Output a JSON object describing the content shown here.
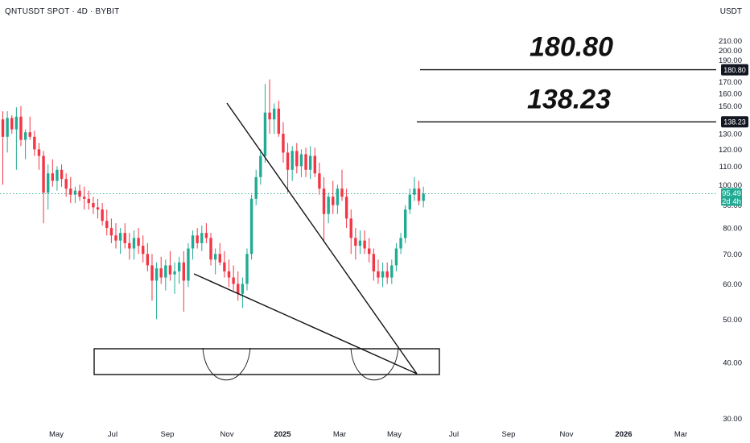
{
  "header": {
    "symbol": "QNTUSDT SPOT · 4D · BYBIT",
    "currency": "USDT"
  },
  "chart_data": {
    "type": "candlestick",
    "price_axis": {
      "ticks": [
        210,
        200,
        190,
        170,
        160,
        150,
        130,
        120,
        110,
        100,
        90,
        80,
        70,
        60,
        50,
        40,
        30
      ],
      "tick_labels": [
        "210.00",
        "200.00",
        "190.00",
        "170.00",
        "160.00",
        "150.00",
        "130.00",
        "120.00",
        "110.00",
        "100.00",
        "90.00",
        "80.00",
        "70.00",
        "60.00",
        "50.00",
        "40.00",
        "30.00"
      ],
      "ylim": [
        26,
        218
      ]
    },
    "time_axis": {
      "labels": [
        "May",
        "Jul",
        "Sep",
        "Nov",
        "2025",
        "Mar",
        "May",
        "Jul",
        "Sep",
        "Nov",
        "2026",
        "Mar"
      ],
      "bold_labels": [
        "2025",
        "2026"
      ]
    },
    "current_price": {
      "value": 95.49,
      "label": "95.49",
      "countdown": "2d 4h",
      "color": "#22ab94"
    },
    "target_levels": [
      {
        "value": 180.8,
        "label": "180.80"
      },
      {
        "value": 138.23,
        "label": "138.23"
      }
    ],
    "colors": {
      "up": "#22ab94",
      "down": "#f23645",
      "line": "#111111"
    },
    "candles": [
      {
        "o": 140,
        "h": 146,
        "l": 100,
        "c": 128
      },
      {
        "o": 128,
        "h": 146,
        "l": 118,
        "c": 141
      },
      {
        "o": 141,
        "h": 143,
        "l": 130,
        "c": 133
      },
      {
        "o": 133,
        "h": 149,
        "l": 108,
        "c": 142
      },
      {
        "o": 142,
        "h": 150,
        "l": 122,
        "c": 126
      },
      {
        "o": 126,
        "h": 133,
        "l": 114,
        "c": 131
      },
      {
        "o": 131,
        "h": 142,
        "l": 126,
        "c": 128
      },
      {
        "o": 128,
        "h": 132,
        "l": 116,
        "c": 120
      },
      {
        "o": 120,
        "h": 124,
        "l": 108,
        "c": 116
      },
      {
        "o": 116,
        "h": 119,
        "l": 82,
        "c": 96
      },
      {
        "o": 96,
        "h": 111,
        "l": 88,
        "c": 106
      },
      {
        "o": 106,
        "h": 114,
        "l": 99,
        "c": 102
      },
      {
        "o": 102,
        "h": 110,
        "l": 97,
        "c": 108
      },
      {
        "o": 108,
        "h": 111,
        "l": 99,
        "c": 103
      },
      {
        "o": 103,
        "h": 106,
        "l": 94,
        "c": 98
      },
      {
        "o": 98,
        "h": 104,
        "l": 91,
        "c": 95
      },
      {
        "o": 95,
        "h": 99,
        "l": 91,
        "c": 97
      },
      {
        "o": 97,
        "h": 100,
        "l": 92,
        "c": 94
      },
      {
        "o": 94,
        "h": 99,
        "l": 88,
        "c": 93
      },
      {
        "o": 93,
        "h": 97,
        "l": 88,
        "c": 91
      },
      {
        "o": 91,
        "h": 94,
        "l": 86,
        "c": 89
      },
      {
        "o": 89,
        "h": 93,
        "l": 84,
        "c": 88
      },
      {
        "o": 88,
        "h": 91,
        "l": 81,
        "c": 83
      },
      {
        "o": 83,
        "h": 88,
        "l": 77,
        "c": 80
      },
      {
        "o": 80,
        "h": 84,
        "l": 74,
        "c": 77
      },
      {
        "o": 77,
        "h": 82,
        "l": 72,
        "c": 75
      },
      {
        "o": 75,
        "h": 80,
        "l": 70,
        "c": 78
      },
      {
        "o": 78,
        "h": 82,
        "l": 72,
        "c": 74
      },
      {
        "o": 74,
        "h": 78,
        "l": 68,
        "c": 72
      },
      {
        "o": 72,
        "h": 79,
        "l": 68,
        "c": 76
      },
      {
        "o": 76,
        "h": 80,
        "l": 70,
        "c": 73
      },
      {
        "o": 73,
        "h": 77,
        "l": 67,
        "c": 70
      },
      {
        "o": 70,
        "h": 74,
        "l": 64,
        "c": 66
      },
      {
        "o": 66,
        "h": 70,
        "l": 55,
        "c": 61
      },
      {
        "o": 61,
        "h": 67,
        "l": 50,
        "c": 65
      },
      {
        "o": 65,
        "h": 69,
        "l": 60,
        "c": 62
      },
      {
        "o": 62,
        "h": 68,
        "l": 58,
        "c": 66
      },
      {
        "o": 66,
        "h": 71,
        "l": 61,
        "c": 63
      },
      {
        "o": 63,
        "h": 67,
        "l": 57,
        "c": 64
      },
      {
        "o": 64,
        "h": 69,
        "l": 60,
        "c": 67
      },
      {
        "o": 67,
        "h": 71,
        "l": 52,
        "c": 61
      },
      {
        "o": 61,
        "h": 74,
        "l": 59,
        "c": 72
      },
      {
        "o": 72,
        "h": 79,
        "l": 68,
        "c": 77
      },
      {
        "o": 77,
        "h": 80,
        "l": 72,
        "c": 74
      },
      {
        "o": 74,
        "h": 81,
        "l": 71,
        "c": 78
      },
      {
        "o": 78,
        "h": 82,
        "l": 74,
        "c": 76
      },
      {
        "o": 76,
        "h": 78,
        "l": 66,
        "c": 68
      },
      {
        "o": 68,
        "h": 72,
        "l": 63,
        "c": 70
      },
      {
        "o": 70,
        "h": 74,
        "l": 66,
        "c": 67
      },
      {
        "o": 67,
        "h": 71,
        "l": 62,
        "c": 64
      },
      {
        "o": 64,
        "h": 68,
        "l": 59,
        "c": 62
      },
      {
        "o": 62,
        "h": 66,
        "l": 58,
        "c": 60
      },
      {
        "o": 60,
        "h": 64,
        "l": 55,
        "c": 57
      },
      {
        "o": 57,
        "h": 62,
        "l": 53,
        "c": 60
      },
      {
        "o": 60,
        "h": 72,
        "l": 58,
        "c": 70
      },
      {
        "o": 70,
        "h": 95,
        "l": 68,
        "c": 93
      },
      {
        "o": 93,
        "h": 108,
        "l": 90,
        "c": 104
      },
      {
        "o": 104,
        "h": 120,
        "l": 100,
        "c": 116
      },
      {
        "o": 116,
        "h": 168,
        "l": 112,
        "c": 145
      },
      {
        "o": 145,
        "h": 172,
        "l": 130,
        "c": 140
      },
      {
        "o": 140,
        "h": 152,
        "l": 130,
        "c": 148
      },
      {
        "o": 148,
        "h": 154,
        "l": 128,
        "c": 130
      },
      {
        "o": 130,
        "h": 138,
        "l": 112,
        "c": 118
      },
      {
        "o": 118,
        "h": 124,
        "l": 96,
        "c": 108
      },
      {
        "o": 108,
        "h": 122,
        "l": 102,
        "c": 119
      },
      {
        "o": 119,
        "h": 124,
        "l": 106,
        "c": 110
      },
      {
        "o": 110,
        "h": 120,
        "l": 104,
        "c": 117
      },
      {
        "o": 117,
        "h": 121,
        "l": 104,
        "c": 108
      },
      {
        "o": 108,
        "h": 122,
        "l": 103,
        "c": 116
      },
      {
        "o": 116,
        "h": 121,
        "l": 104,
        "c": 106
      },
      {
        "o": 106,
        "h": 112,
        "l": 95,
        "c": 98
      },
      {
        "o": 98,
        "h": 104,
        "l": 75,
        "c": 86
      },
      {
        "o": 86,
        "h": 96,
        "l": 82,
        "c": 94
      },
      {
        "o": 94,
        "h": 102,
        "l": 86,
        "c": 90
      },
      {
        "o": 90,
        "h": 100,
        "l": 86,
        "c": 98
      },
      {
        "o": 98,
        "h": 108,
        "l": 92,
        "c": 94
      },
      {
        "o": 94,
        "h": 98,
        "l": 80,
        "c": 84
      },
      {
        "o": 84,
        "h": 88,
        "l": 70,
        "c": 76
      },
      {
        "o": 76,
        "h": 80,
        "l": 68,
        "c": 73
      },
      {
        "o": 73,
        "h": 79,
        "l": 70,
        "c": 75
      },
      {
        "o": 75,
        "h": 79,
        "l": 70,
        "c": 72
      },
      {
        "o": 72,
        "h": 76,
        "l": 67,
        "c": 70
      },
      {
        "o": 70,
        "h": 72,
        "l": 61,
        "c": 64
      },
      {
        "o": 64,
        "h": 68,
        "l": 60,
        "c": 62
      },
      {
        "o": 62,
        "h": 67,
        "l": 59,
        "c": 64
      },
      {
        "o": 64,
        "h": 67,
        "l": 60,
        "c": 62
      },
      {
        "o": 62,
        "h": 68,
        "l": 60,
        "c": 66
      },
      {
        "o": 66,
        "h": 74,
        "l": 64,
        "c": 72
      },
      {
        "o": 72,
        "h": 78,
        "l": 70,
        "c": 76
      },
      {
        "o": 76,
        "h": 90,
        "l": 74,
        "c": 88
      },
      {
        "o": 88,
        "h": 98,
        "l": 86,
        "c": 95
      },
      {
        "o": 95,
        "h": 104,
        "l": 92,
        "c": 98
      },
      {
        "o": 98,
        "h": 102,
        "l": 90,
        "c": 92
      },
      {
        "o": 92,
        "h": 99,
        "l": 89,
        "c": 95.49
      }
    ]
  }
}
